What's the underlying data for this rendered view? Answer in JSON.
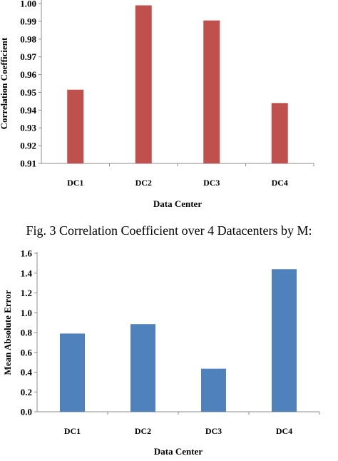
{
  "caption": "Fig. 3 Correlation Coefficient over 4 Datacenters by M:",
  "colors": {
    "top_bar": "#c0504d",
    "bottom_bar": "#4f81bd",
    "axis": "#8c8c8c"
  },
  "chart_data": [
    {
      "type": "bar",
      "title": "",
      "categories": [
        "DC1",
        "DC2",
        "DC3",
        "DC4"
      ],
      "values": [
        0.9515,
        0.999,
        0.9905,
        0.944
      ],
      "xlabel": "Data Center",
      "ylabel": "Correlation Coefficient",
      "ylim": [
        0.91,
        1.0
      ],
      "yticks": [
        "0.91",
        "0.92",
        "0.93",
        "0.94",
        "0.95",
        "0.96",
        "0.97",
        "0.98",
        "0.99",
        "1.00"
      ],
      "grid": false,
      "legend": "none"
    },
    {
      "type": "bar",
      "title": "",
      "categories": [
        "DC1",
        "DC2",
        "DC3",
        "DC4"
      ],
      "values": [
        0.79,
        0.885,
        0.435,
        1.44
      ],
      "xlabel": "Data  Center",
      "ylabel": "Mean Absolute Error",
      "ylim": [
        0.0,
        1.6
      ],
      "yticks": [
        "0.0",
        "0.2",
        "0.4",
        "0.6",
        "0.8",
        "1.0",
        "1.2",
        "1.4",
        "1.6"
      ],
      "grid": false,
      "legend": "none"
    }
  ]
}
